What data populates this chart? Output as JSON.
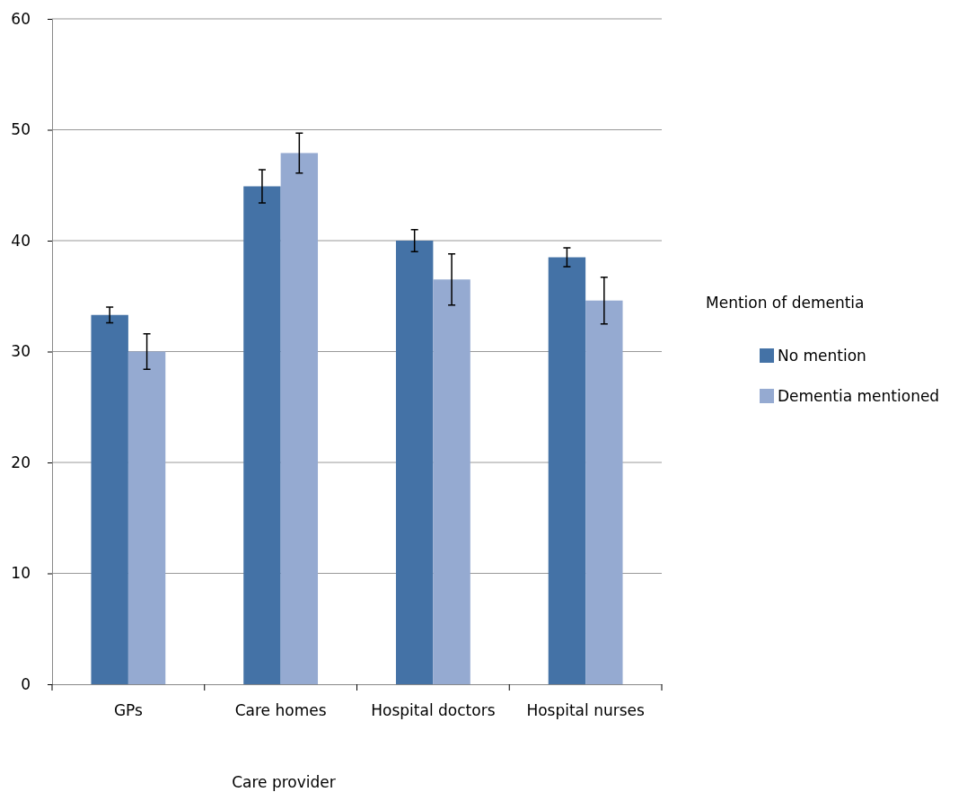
{
  "chart_data": {
    "type": "bar",
    "xlabel": "Care provider",
    "legend_title": "Mention of dementia",
    "categories": [
      "GPs",
      "Care homes",
      "Hospital doctors",
      "Hospital nurses"
    ],
    "series": [
      {
        "name": "No mention",
        "color": "#4472a6",
        "values": [
          33.3,
          44.9,
          40.0,
          38.5
        ],
        "errors": [
          0.7,
          1.5,
          1.0,
          0.85
        ]
      },
      {
        "name": "Dementia mentioned",
        "color": "#95aad1",
        "values": [
          30.0,
          47.9,
          36.5,
          34.6
        ],
        "errors": [
          1.6,
          1.8,
          2.3,
          2.1
        ]
      }
    ],
    "ylim": [
      0,
      60
    ],
    "yticks": [
      0,
      10,
      20,
      30,
      40,
      50,
      60
    ],
    "grid": "y",
    "legend": "right"
  }
}
